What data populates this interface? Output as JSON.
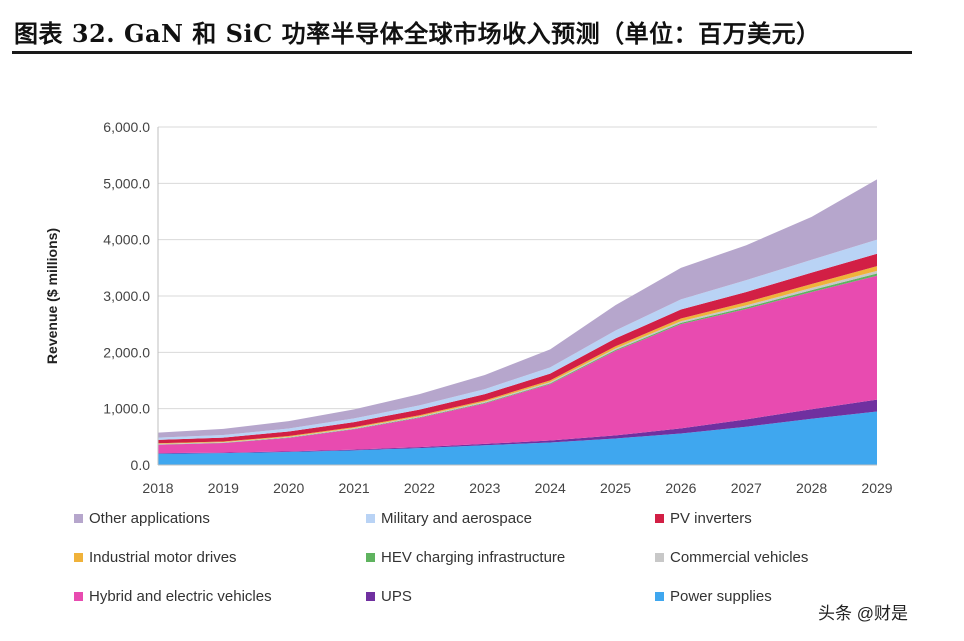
{
  "title": "图表 32. GaN 和 SiC 功率半导体全球市场收入预测（单位：百万美元）",
  "watermark": "头条 @财是",
  "chart_data": {
    "type": "area",
    "stacked": true,
    "ylabel": "Revenue ($ millions)",
    "xlabel": "",
    "ylim": [
      0,
      6000
    ],
    "yticks": [
      0,
      1000,
      2000,
      3000,
      4000,
      5000,
      6000
    ],
    "ytick_labels": [
      "0.0",
      "1,000.0",
      "2,000.0",
      "3,000.0",
      "4,000.0",
      "5,000.0",
      "6,000.0"
    ],
    "grid": true,
    "x": [
      "2018",
      "2019",
      "2020",
      "2021",
      "2022",
      "2023",
      "2024",
      "2025",
      "2026",
      "2027",
      "2028",
      "2029"
    ],
    "series": [
      {
        "name": "Power supplies",
        "color": "#3fa7ef",
        "values": [
          200,
          210,
          230,
          260,
          300,
          350,
          400,
          470,
          560,
          680,
          820,
          950
        ]
      },
      {
        "name": "UPS",
        "color": "#7030a0",
        "values": [
          10,
          10,
          12,
          14,
          18,
          24,
          35,
          55,
          90,
          130,
          170,
          210
        ]
      },
      {
        "name": "Hybrid and electric vehicles",
        "color": "#e84bb0",
        "values": [
          150,
          170,
          240,
          360,
          520,
          720,
          1000,
          1500,
          1850,
          1960,
          2080,
          2200
        ]
      },
      {
        "name": "HEV charging infrastructure",
        "color": "#5fb35f",
        "values": [
          5,
          5,
          6,
          8,
          10,
          12,
          15,
          18,
          22,
          28,
          34,
          40
        ]
      },
      {
        "name": "Commercial vehicles",
        "color": "#c8c8c8",
        "values": [
          10,
          10,
          12,
          14,
          16,
          18,
          22,
          26,
          30,
          35,
          40,
          45
        ]
      },
      {
        "name": "Industrial motor drives",
        "color": "#f0b23a",
        "values": [
          10,
          12,
          14,
          16,
          20,
          24,
          30,
          38,
          48,
          58,
          70,
          85
        ]
      },
      {
        "name": "PV inverters",
        "color": "#d21f45",
        "values": [
          60,
          70,
          80,
          90,
          100,
          110,
          120,
          140,
          160,
          180,
          200,
          220
        ]
      },
      {
        "name": "Military and aerospace",
        "color": "#b9d3f5",
        "values": [
          40,
          45,
          55,
          65,
          75,
          90,
          110,
          140,
          180,
          210,
          230,
          250
        ]
      },
      {
        "name": "Other applications",
        "color": "#b6a6cc",
        "values": [
          90,
          110,
          130,
          160,
          200,
          250,
          320,
          450,
          560,
          620,
          760,
          1070
        ]
      }
    ],
    "legend": {
      "position": "bottom",
      "order": [
        "Other applications",
        "Military and aerospace",
        "PV inverters",
        "Industrial motor drives",
        "HEV charging infrastructure",
        "Commercial vehicles",
        "Hybrid and electric vehicles",
        "UPS",
        "Power supplies"
      ]
    }
  }
}
